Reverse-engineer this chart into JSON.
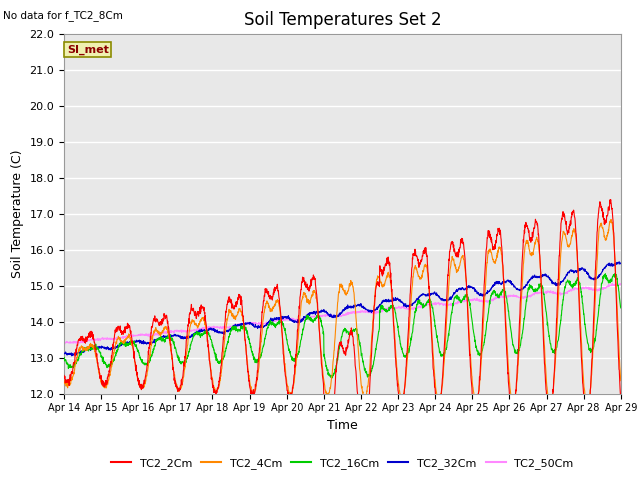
{
  "title": "Soil Temperatures Set 2",
  "subtitle": "No data for f_TC2_8Cm",
  "xlabel": "Time",
  "ylabel": "Soil Temperature (C)",
  "ylim": [
    12.0,
    22.0
  ],
  "yticks": [
    12.0,
    13.0,
    14.0,
    15.0,
    16.0,
    17.0,
    18.0,
    19.0,
    20.0,
    21.0,
    22.0
  ],
  "xtick_labels": [
    "Apr 14",
    "Apr 15",
    "Apr 16",
    "Apr 17",
    "Apr 18",
    "Apr 19",
    "Apr 20",
    "Apr 21",
    "Apr 22",
    "Apr 23",
    "Apr 24",
    "Apr 25",
    "Apr 26",
    "Apr 27",
    "Apr 28",
    "Apr 29"
  ],
  "legend_entries": [
    "TC2_2Cm",
    "TC2_4Cm",
    "TC2_16Cm",
    "TC2_32Cm",
    "TC2_50Cm"
  ],
  "line_colors": [
    "#ff0000",
    "#ff8800",
    "#00cc00",
    "#0000cc",
    "#ff88ff"
  ],
  "annotation_text": "SI_met",
  "bg_color": "#e8e8e8",
  "grid_color": "#ffffff",
  "title_fontsize": 12,
  "label_fontsize": 9,
  "tick_fontsize": 8
}
